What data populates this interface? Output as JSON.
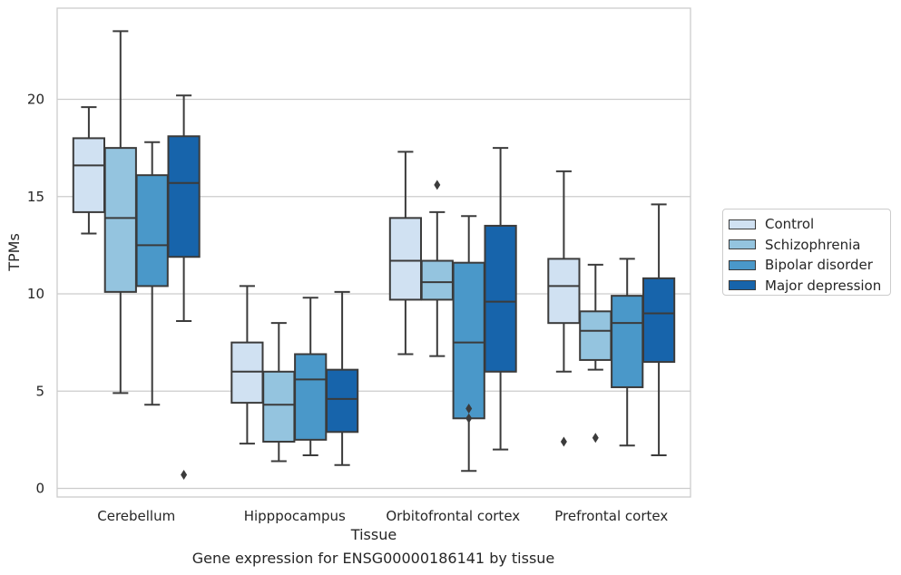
{
  "chart_data": {
    "type": "box",
    "caption": "Gene expression for ENSG00000186141 by tissue",
    "xlabel": "Tissue",
    "ylabel": "TPMs",
    "ylim": [
      -0.4,
      24.2
    ],
    "yticks": [
      0,
      5,
      10,
      15,
      20
    ],
    "grid": "horizontal",
    "legend_position": "right",
    "categories": [
      "Cerebellum",
      "Hipppocampus",
      "Orbitofrontal cortex",
      "Prefrontal cortex"
    ],
    "series": [
      {
        "name": "Control",
        "color": "#d0e1f2",
        "boxes": [
          {
            "whislo": 13.1,
            "q1": 14.2,
            "med": 16.6,
            "q3": 18.0,
            "whishi": 19.6,
            "fliers": []
          },
          {
            "whislo": 2.3,
            "q1": 4.4,
            "med": 6.0,
            "q3": 7.5,
            "whishi": 10.4,
            "fliers": []
          },
          {
            "whislo": 6.9,
            "q1": 9.7,
            "med": 11.7,
            "q3": 13.9,
            "whishi": 17.3,
            "fliers": []
          },
          {
            "whislo": 6.0,
            "q1": 8.5,
            "med": 10.4,
            "q3": 11.8,
            "whishi": 16.3,
            "fliers": [
              2.4
            ]
          }
        ]
      },
      {
        "name": "Schizophrenia",
        "color": "#94c4df",
        "boxes": [
          {
            "whislo": 4.9,
            "q1": 10.1,
            "med": 13.9,
            "q3": 17.5,
            "whishi": 23.5,
            "fliers": []
          },
          {
            "whislo": 1.4,
            "q1": 2.4,
            "med": 4.3,
            "q3": 6.0,
            "whishi": 8.5,
            "fliers": []
          },
          {
            "whislo": 6.8,
            "q1": 9.7,
            "med": 10.6,
            "q3": 11.7,
            "whishi": 14.2,
            "fliers": [
              15.6
            ]
          },
          {
            "whislo": 6.1,
            "q1": 6.6,
            "med": 8.1,
            "q3": 9.1,
            "whishi": 11.5,
            "fliers": [
              2.6
            ]
          }
        ]
      },
      {
        "name": "Bipolar disorder",
        "color": "#4a98c9",
        "boxes": [
          {
            "whislo": 4.3,
            "q1": 10.4,
            "med": 12.5,
            "q3": 16.1,
            "whishi": 17.8,
            "fliers": []
          },
          {
            "whislo": 1.7,
            "q1": 2.5,
            "med": 5.6,
            "q3": 6.9,
            "whishi": 9.8,
            "fliers": []
          },
          {
            "whislo": 0.9,
            "q1": 3.6,
            "med": 7.5,
            "q3": 11.6,
            "whishi": 14.0,
            "fliers": [
              4.1,
              3.6
            ]
          },
          {
            "whislo": 2.2,
            "q1": 5.2,
            "med": 8.5,
            "q3": 9.9,
            "whishi": 11.8,
            "fliers": []
          }
        ]
      },
      {
        "name": "Major depression",
        "color": "#1764ab",
        "boxes": [
          {
            "whislo": 8.6,
            "q1": 11.9,
            "med": 15.7,
            "q3": 18.1,
            "whishi": 20.2,
            "fliers": [
              0.7
            ]
          },
          {
            "whislo": 1.2,
            "q1": 2.9,
            "med": 4.6,
            "q3": 6.1,
            "whishi": 10.1,
            "fliers": []
          },
          {
            "whislo": 2.0,
            "q1": 6.0,
            "med": 9.6,
            "q3": 13.5,
            "whishi": 17.5,
            "fliers": []
          },
          {
            "whislo": 1.7,
            "q1": 6.5,
            "med": 9.0,
            "q3": 10.8,
            "whishi": 14.6,
            "fliers": []
          }
        ]
      }
    ]
  }
}
